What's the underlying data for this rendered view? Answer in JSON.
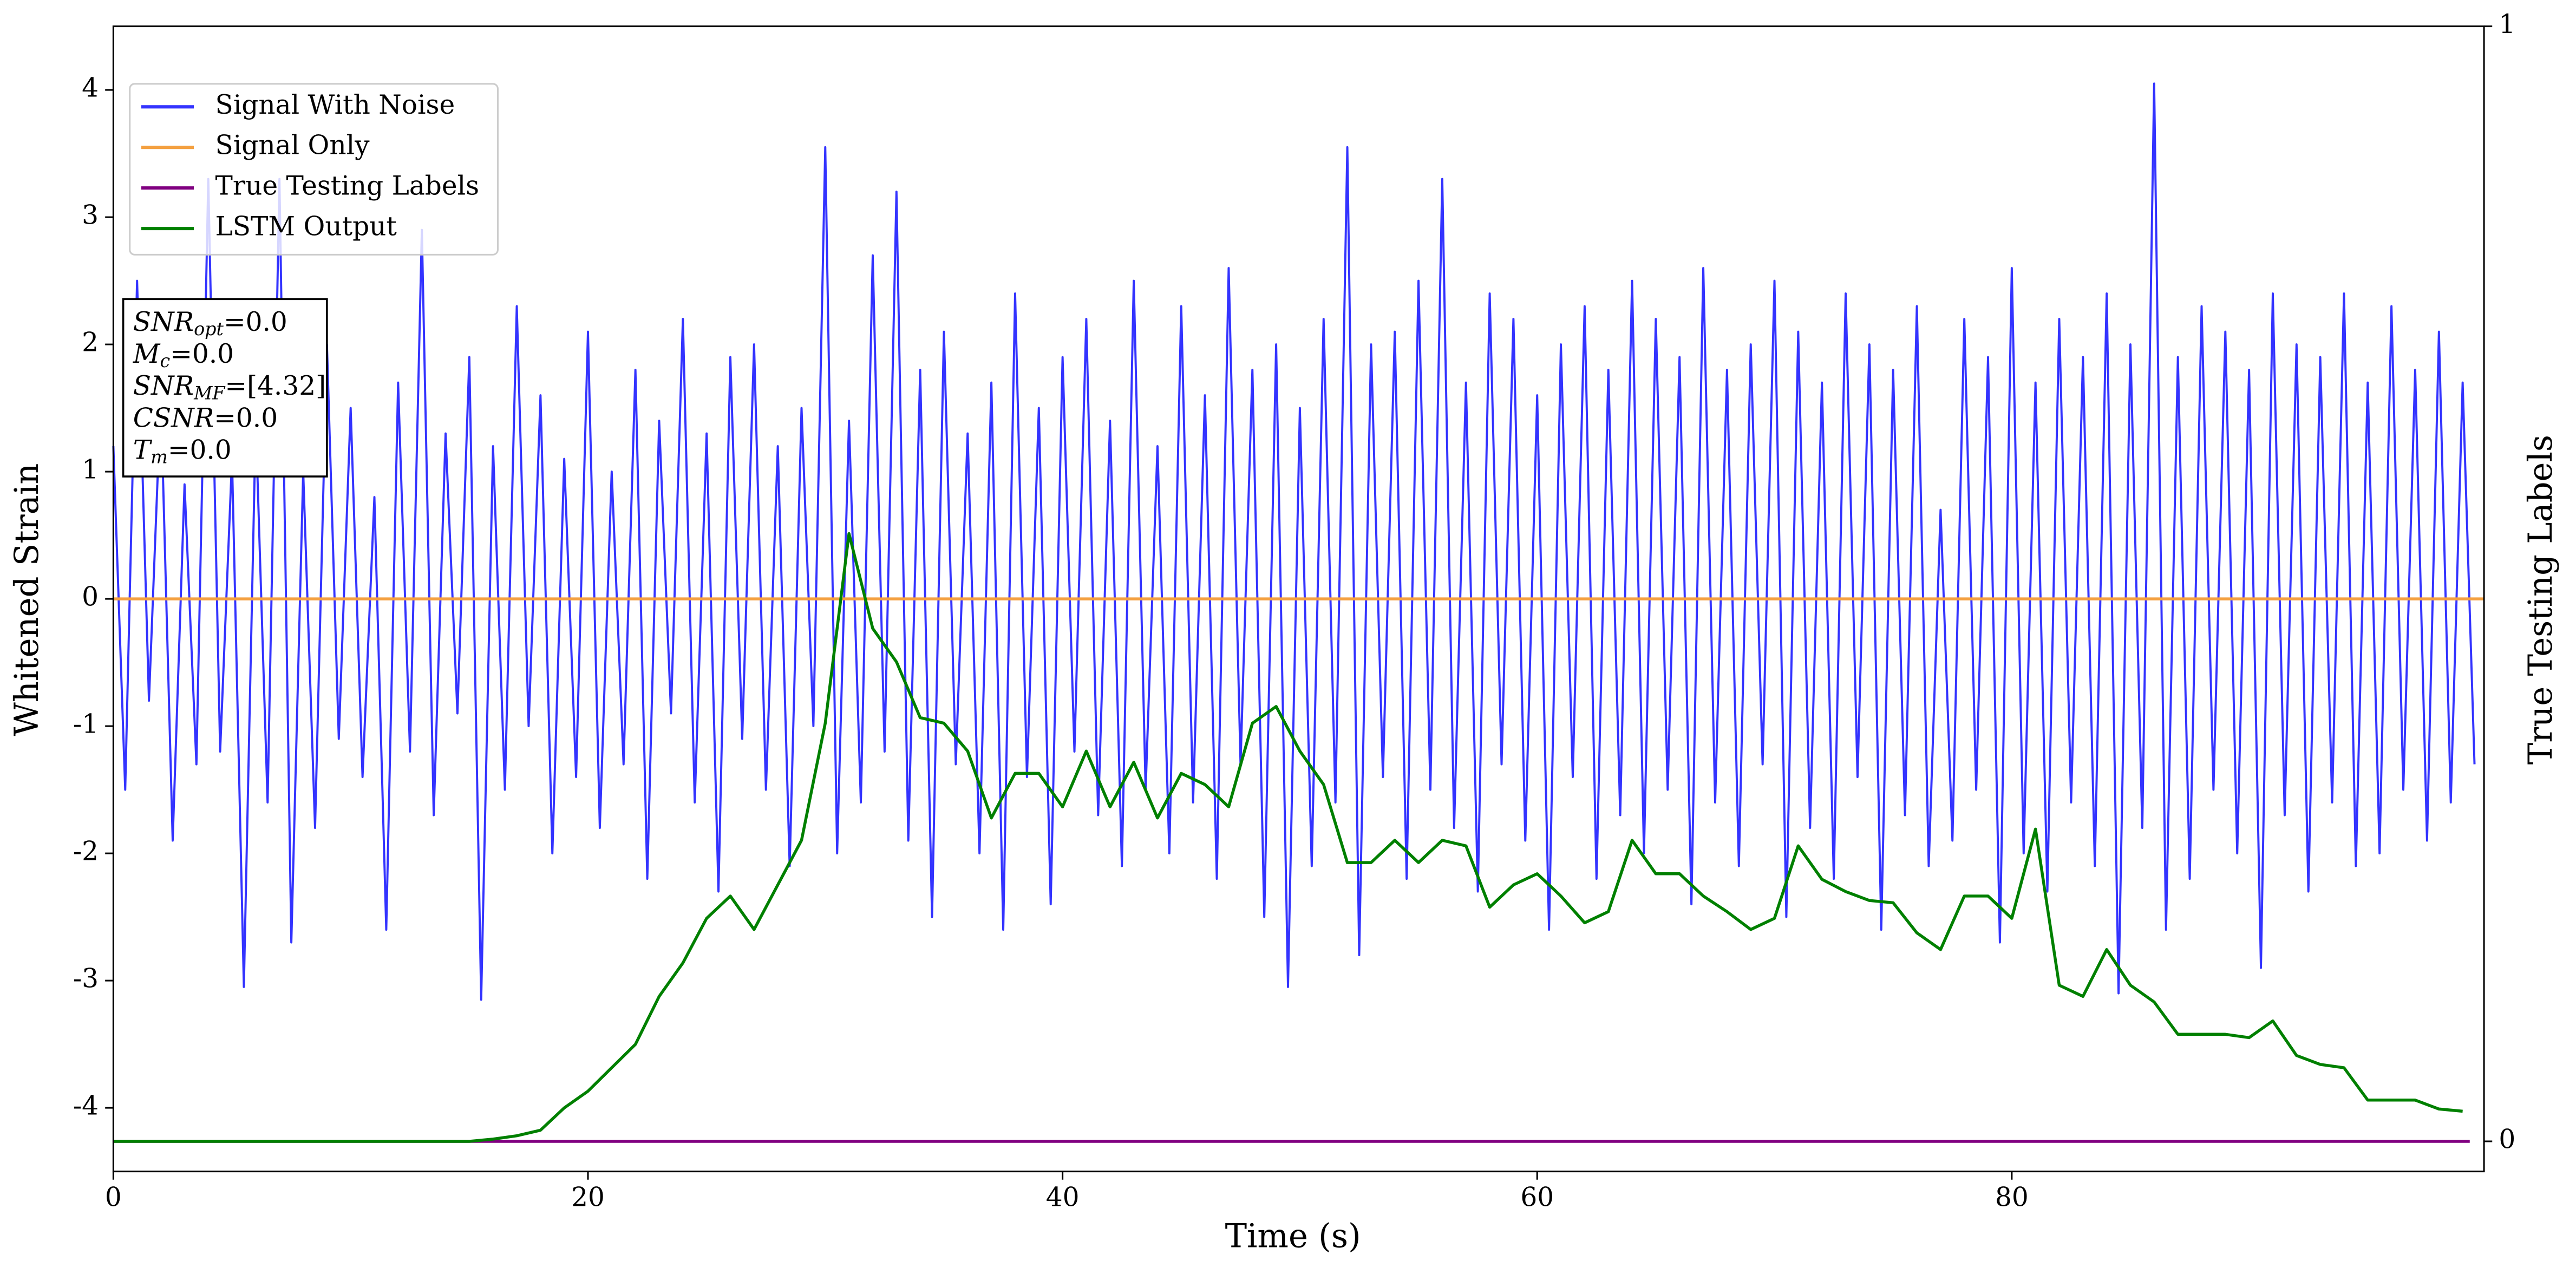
{
  "chart_data": {
    "type": "line",
    "xlabel": "Time (s)",
    "ylabel": "Whitened Strain",
    "y2label": "True Testing Labels",
    "xlim": [
      0,
      99.9
    ],
    "xticks": [
      0,
      20,
      40,
      60,
      80
    ],
    "ylim": [
      -4.5,
      4.5
    ],
    "yticks": [
      -4,
      -3,
      -2,
      -1,
      0,
      1,
      2,
      3,
      4
    ],
    "y2lim": [
      -0.027,
      1
    ],
    "y2ticks": [
      0,
      1
    ],
    "legend": "upper left",
    "series": [
      {
        "name": "Signal With Noise",
        "color": "#3333ff",
        "x": [
          0,
          0.5,
          1,
          1.5,
          2,
          2.5,
          3,
          3.5,
          4,
          4.5,
          5,
          5.5,
          6,
          6.5,
          7,
          7.5,
          8,
          8.5,
          9,
          9.5,
          10,
          10.5,
          11,
          11.5,
          12,
          12.5,
          13,
          13.5,
          14,
          14.5,
          15,
          15.5,
          16,
          16.5,
          17,
          17.5,
          18,
          18.5,
          19,
          19.5,
          20,
          20.5,
          21,
          21.5,
          22,
          22.5,
          23,
          23.5,
          24,
          24.5,
          25,
          25.5,
          26,
          26.5,
          27,
          27.5,
          28,
          28.5,
          29,
          29.5,
          30,
          30.5,
          31,
          31.5,
          32,
          32.5,
          33,
          33.5,
          34,
          34.5,
          35,
          35.5,
          36,
          36.5,
          37,
          37.5,
          38,
          38.5,
          39,
          39.5,
          40,
          40.5,
          41,
          41.5,
          42,
          42.5,
          43,
          43.5,
          44,
          44.5,
          45,
          45.5,
          46,
          46.5,
          47,
          47.5,
          48,
          48.5,
          49,
          49.5,
          50,
          50.5,
          51,
          51.5,
          52,
          52.5,
          53,
          53.5,
          54,
          54.5,
          55,
          55.5,
          56,
          56.5,
          57,
          57.5,
          58,
          58.5,
          59,
          59.5,
          60,
          60.5,
          61,
          61.5,
          62,
          62.5,
          63,
          63.5,
          64,
          64.5,
          65,
          65.5,
          66,
          66.5,
          67,
          67.5,
          68,
          68.5,
          69,
          69.5,
          70,
          70.5,
          71,
          71.5,
          72,
          72.5,
          73,
          73.5,
          74,
          74.5,
          75,
          75.5,
          76,
          76.5,
          77,
          77.5,
          78,
          78.5,
          79,
          79.5,
          80,
          80.5,
          81,
          81.5,
          82,
          82.5,
          83,
          83.5,
          84,
          84.5,
          85,
          85.5,
          86,
          86.5,
          87,
          87.5,
          88,
          88.5,
          89,
          89.5,
          90,
          90.5,
          91,
          91.5,
          92,
          92.5,
          93,
          93.5,
          94,
          94.5,
          95,
          95.5,
          96,
          96.5,
          97,
          97.5,
          98,
          98.5,
          99,
          99.5
        ],
        "values": [
          1.2,
          -1.5,
          2.5,
          -0.8,
          1.6,
          -1.9,
          0.9,
          -1.3,
          3.3,
          -1.2,
          1.1,
          -3.05,
          1.4,
          -1.6,
          3.3,
          -2.7,
          1.0,
          -1.8,
          2.0,
          -1.1,
          1.5,
          -1.4,
          0.8,
          -2.6,
          1.7,
          -1.2,
          2.9,
          -1.7,
          1.3,
          -0.9,
          1.9,
          -3.15,
          1.2,
          -1.5,
          2.3,
          -1.0,
          1.6,
          -2.0,
          1.1,
          -1.4,
          2.1,
          -1.8,
          1.0,
          -1.3,
          1.8,
          -2.2,
          1.4,
          -0.9,
          2.2,
          -1.6,
          1.3,
          -2.3,
          1.9,
          -1.1,
          2.0,
          -1.5,
          1.2,
          -2.1,
          1.5,
          -1.0,
          3.55,
          -2.0,
          1.4,
          -1.6,
          2.7,
          -1.2,
          3.2,
          -1.9,
          1.8,
          -2.5,
          2.1,
          -1.3,
          1.3,
          -2.0,
          1.7,
          -2.6,
          2.4,
          -1.4,
          1.5,
          -2.4,
          1.9,
          -1.2,
          2.2,
          -1.7,
          1.4,
          -2.1,
          2.5,
          -1.5,
          1.2,
          -2.0,
          2.3,
          -1.6,
          1.6,
          -2.2,
          2.6,
          -1.3,
          1.8,
          -2.5,
          2.0,
          -3.05,
          1.5,
          -2.1,
          2.2,
          -1.6,
          3.55,
          -2.8,
          2.0,
          -1.4,
          2.1,
          -2.2,
          2.5,
          -1.5,
          3.3,
          -1.8,
          1.7,
          -2.3,
          2.4,
          -1.3,
          2.2,
          -1.9,
          1.6,
          -2.6,
          2.0,
          -1.4,
          2.3,
          -2.2,
          1.8,
          -1.7,
          2.5,
          -2.0,
          2.2,
          -1.5,
          1.9,
          -2.4,
          2.6,
          -1.6,
          1.8,
          -2.1,
          2.0,
          -1.3,
          2.5,
          -2.5,
          2.1,
          -1.8,
          1.7,
          -2.2,
          2.4,
          -1.4,
          2.0,
          -2.6,
          1.8,
          -1.7,
          2.3,
          -2.1,
          0.7,
          -1.9,
          2.2,
          -1.5,
          1.9,
          -2.7,
          2.6,
          -2.0,
          1.7,
          -2.3,
          2.2,
          -1.6,
          1.9,
          -2.1,
          2.4,
          -3.1,
          2.0,
          -1.8,
          4.05,
          -2.6,
          1.9,
          -2.2,
          2.3,
          -1.5,
          2.1,
          -2.0,
          1.8,
          -2.9,
          2.4,
          -1.7,
          2.0,
          -2.3,
          1.9,
          -1.6,
          2.4,
          -2.1,
          1.7,
          -2.0,
          2.3,
          -1.5,
          1.8,
          -1.9,
          2.1,
          -1.6,
          1.7,
          -1.3
        ]
      },
      {
        "name": "Signal Only",
        "color": "#f4a040",
        "x": [
          0,
          99.9
        ],
        "values": [
          0,
          0
        ]
      },
      {
        "name": "True Testing Labels",
        "color": "#800080",
        "axis": "y2",
        "x": [
          0,
          99.3
        ],
        "values": [
          0,
          0
        ]
      },
      {
        "name": "LSTM Output",
        "color": "#008000",
        "axis": "y2",
        "x": [
          0,
          1,
          2,
          3,
          4,
          5,
          6,
          7,
          8,
          9,
          10,
          11,
          12,
          13,
          14,
          15,
          16,
          17,
          18,
          19,
          20,
          21,
          22,
          23,
          24,
          25,
          26,
          27,
          28,
          29,
          30,
          31,
          32,
          33,
          34,
          35,
          36,
          37,
          38,
          39,
          40,
          41,
          42,
          43,
          44,
          45,
          46,
          47,
          48,
          49,
          50,
          51,
          52,
          53,
          54,
          55,
          56,
          57,
          58,
          59,
          60,
          61,
          62,
          63,
          64,
          65,
          66,
          67,
          68,
          69,
          70,
          71,
          72,
          73,
          74,
          75,
          76,
          77,
          78,
          79,
          80,
          81,
          82,
          83,
          84,
          85,
          86,
          87,
          88,
          89,
          90,
          91,
          92,
          93,
          94,
          95,
          96,
          97,
          98,
          99
        ],
        "values": [
          0,
          0,
          0,
          0,
          0,
          0,
          0,
          0,
          0,
          0,
          0,
          0,
          0,
          0,
          0,
          0,
          0.002,
          0.005,
          0.01,
          0.03,
          0.045,
          0.066,
          0.087,
          0.13,
          0.16,
          0.2,
          0.22,
          0.19,
          0.23,
          0.27,
          0.375,
          0.545,
          0.46,
          0.43,
          0.38,
          0.375,
          0.35,
          0.29,
          0.33,
          0.33,
          0.3,
          0.35,
          0.3,
          0.34,
          0.29,
          0.33,
          0.32,
          0.3,
          0.375,
          0.39,
          0.35,
          0.32,
          0.25,
          0.25,
          0.27,
          0.25,
          0.27,
          0.265,
          0.21,
          0.23,
          0.24,
          0.22,
          0.196,
          0.206,
          0.27,
          0.24,
          0.24,
          0.22,
          0.206,
          0.19,
          0.2,
          0.265,
          0.235,
          0.224,
          0.216,
          0.214,
          0.187,
          0.172,
          0.22,
          0.22,
          0.2,
          0.28,
          0.14,
          0.13,
          0.172,
          0.14,
          0.125,
          0.096,
          0.096,
          0.096,
          0.093,
          0.108,
          0.077,
          0.069,
          0.066,
          0.037,
          0.037,
          0.037,
          0.029,
          0.027
        ]
      }
    ],
    "annotation": [
      {
        "symbol": "SNR",
        "subscript": "opt",
        "text": "=0.0"
      },
      {
        "symbol": "M",
        "subscript": "c",
        "text": "=0.0"
      },
      {
        "symbol": "SNR",
        "subscript": "MF",
        "text": "=[4.32]"
      },
      {
        "symbol": "CSNR",
        "text": "=0.0"
      },
      {
        "symbol": "T",
        "subscript": "m",
        "text": "=0.0"
      }
    ]
  }
}
